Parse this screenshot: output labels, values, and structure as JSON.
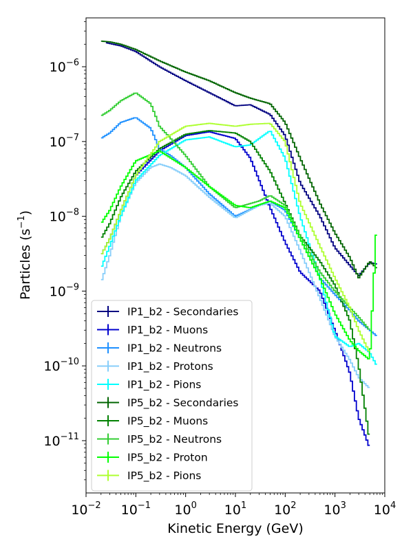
{
  "chart_data": {
    "type": "line",
    "style": "step-histogram",
    "xlabel": "Kinetic Energy (GeV)",
    "ylabel": "Particles (s",
    "ylabel_exp": "−1",
    "ylabel_close": ")",
    "xscale": "log",
    "yscale": "log",
    "xlim": [
      0.01,
      10000
    ],
    "ylim": [
      2e-12,
      4.5e-06
    ],
    "x_ticks": [
      {
        "value": 0.01,
        "mantissa": "10",
        "exp": "−2"
      },
      {
        "value": 0.1,
        "mantissa": "10",
        "exp": "−1"
      },
      {
        "value": 1,
        "mantissa": "10",
        "exp": "0"
      },
      {
        "value": 10,
        "mantissa": "10",
        "exp": "1"
      },
      {
        "value": 100,
        "mantissa": "10",
        "exp": "2"
      },
      {
        "value": 1000,
        "mantissa": "10",
        "exp": "3"
      },
      {
        "value": 10000,
        "mantissa": "10",
        "exp": "4"
      }
    ],
    "y_ticks": [
      {
        "value": 1e-11,
        "mantissa": "10",
        "exp": "−11"
      },
      {
        "value": 1e-10,
        "mantissa": "10",
        "exp": "−10"
      },
      {
        "value": 1e-09,
        "mantissa": "10",
        "exp": "−9"
      },
      {
        "value": 1e-08,
        "mantissa": "10",
        "exp": "−8"
      },
      {
        "value": 1e-07,
        "mantissa": "10",
        "exp": "−7"
      },
      {
        "value": 1e-06,
        "mantissa": "10",
        "exp": "−6"
      }
    ],
    "legend_position": "lower-left",
    "series": [
      {
        "name": "IP1_b2 - Secondaries",
        "color": "#000080",
        "x": [
          0.025,
          0.05,
          0.1,
          0.3,
          1,
          3,
          10,
          20,
          50,
          100,
          200,
          500,
          1000,
          2000,
          3000,
          5000,
          7000
        ],
        "y": [
          2.1e-06,
          1.9e-06,
          1.6e-06,
          1e-06,
          6.5e-07,
          4.5e-07,
          3e-07,
          3.1e-07,
          2.3e-07,
          1.2e-07,
          2.8e-08,
          1e-08,
          3.8e-09,
          2.2e-09,
          1.6e-09,
          2.4e-09,
          2.3e-09
        ]
      },
      {
        "name": "IP1_b2 - Muons",
        "color": "#0000cd",
        "x": [
          0.02,
          0.03,
          0.05,
          0.1,
          0.3,
          1,
          3,
          10,
          20,
          50,
          100,
          200,
          500,
          1000,
          2000,
          3000,
          5000
        ],
        "y": [
          3e-09,
          5e-09,
          1.2e-08,
          3.5e-08,
          7.5e-08,
          1.2e-07,
          1.35e-07,
          1.1e-07,
          6e-08,
          1.3e-08,
          4.5e-09,
          1.8e-09,
          1e-09,
          3e-10,
          8e-11,
          2e-11,
          8e-12
        ]
      },
      {
        "name": "IP1_b2 - Neutrons",
        "color": "#1e90ff",
        "x": [
          0.02,
          0.03,
          0.05,
          0.1,
          0.2,
          0.3,
          0.5,
          1,
          3,
          10,
          30,
          50,
          100,
          200,
          500,
          1000,
          2000,
          3000,
          5000,
          7000
        ],
        "y": [
          1.1e-07,
          1.3e-07,
          1.8e-07,
          2.1e-07,
          1.5e-07,
          8e-08,
          6.5e-08,
          4.5e-08,
          2e-08,
          1e-08,
          1.4e-08,
          1.6e-08,
          1.2e-08,
          5e-09,
          1.5e-09,
          9e-10,
          5.5e-10,
          4e-10,
          3e-10,
          2.5e-10
        ]
      },
      {
        "name": "IP1_b2 - Protons",
        "color": "#87cefa",
        "x": [
          0.02,
          0.03,
          0.05,
          0.1,
          0.2,
          0.3,
          0.5,
          1,
          3,
          10,
          30,
          50,
          100,
          200,
          500,
          1000,
          2000,
          3000,
          5000
        ],
        "y": [
          1.3e-09,
          3e-09,
          1e-08,
          2.8e-08,
          4.5e-08,
          5e-08,
          4.5e-08,
          3.5e-08,
          1.8e-08,
          9.5e-09,
          1.4e-08,
          1.5e-08,
          1e-08,
          3.5e-09,
          8e-10,
          2.5e-10,
          1.2e-10,
          7e-11,
          5e-11
        ]
      },
      {
        "name": "IP1_b2 - Pions",
        "color": "#00ffff",
        "x": [
          0.02,
          0.03,
          0.05,
          0.1,
          0.3,
          1,
          3,
          10,
          20,
          50,
          100,
          200,
          500,
          1000,
          2000,
          3000,
          5000,
          7000
        ],
        "y": [
          2e-09,
          4e-09,
          1e-08,
          3e-08,
          6.5e-08,
          1.05e-07,
          1.15e-07,
          8.5e-08,
          9e-08,
          1.4e-07,
          6e-08,
          1e-08,
          1.5e-09,
          2.5e-10,
          1.8e-10,
          2e-10,
          1.5e-10,
          1e-10
        ]
      },
      {
        "name": "IP5_b2 - Secondaries",
        "color": "#006400",
        "x": [
          0.02,
          0.03,
          0.05,
          0.1,
          0.3,
          1,
          3,
          10,
          20,
          50,
          100,
          200,
          500,
          1000,
          2000,
          3000,
          5000,
          7000
        ],
        "y": [
          2.2e-06,
          2.15e-06,
          2e-06,
          1.7e-06,
          1.2e-06,
          8.5e-07,
          6.5e-07,
          4.5e-07,
          3.8e-07,
          3.2e-07,
          1.8e-07,
          6e-08,
          1.5e-08,
          6e-09,
          2.8e-09,
          1.5e-09,
          2.5e-09,
          2e-09
        ]
      },
      {
        "name": "IP5_b2 - Muons",
        "color": "#008000",
        "x": [
          0.02,
          0.03,
          0.05,
          0.1,
          0.3,
          1,
          3,
          10,
          20,
          50,
          100,
          200,
          500,
          1000,
          2000,
          3000,
          5000
        ],
        "y": [
          5e-09,
          8e-09,
          1.8e-08,
          4e-08,
          8e-08,
          1.25e-07,
          1.4e-07,
          1.3e-07,
          1e-07,
          4e-08,
          1.5e-08,
          5.5e-09,
          2.5e-09,
          1.2e-09,
          4e-10,
          1e-10,
          1e-11
        ]
      },
      {
        "name": "IP5_b2 - Neutrons",
        "color": "#32cd32",
        "x": [
          0.02,
          0.03,
          0.05,
          0.1,
          0.2,
          0.3,
          0.5,
          1,
          3,
          10,
          30,
          50,
          100,
          200,
          500,
          1000,
          2000,
          3000,
          5000
        ],
        "y": [
          2.2e-07,
          2.6e-07,
          3.5e-07,
          4.5e-07,
          3.2e-07,
          1.6e-07,
          1.1e-07,
          6.5e-08,
          2.5e-08,
          1.3e-08,
          1.6e-08,
          1.9e-08,
          1.4e-08,
          5.5e-09,
          1.8e-09,
          1e-09,
          6e-10,
          4.5e-10,
          3e-10
        ]
      },
      {
        "name": "IP5_b2 - Proton",
        "color": "#00ff00",
        "x": [
          0.02,
          0.03,
          0.05,
          0.1,
          0.3,
          1,
          3,
          10,
          20,
          50,
          100,
          200,
          500,
          1000,
          2000,
          3000,
          5000,
          7000
        ],
        "y": [
          8e-09,
          1.2e-08,
          2.5e-08,
          5.5e-08,
          7.5e-08,
          4.5e-08,
          2.5e-08,
          1.4e-08,
          1.3e-08,
          1.6e-08,
          1.3e-08,
          5e-09,
          1.5e-09,
          5e-10,
          2.2e-10,
          1.6e-10,
          1.2e-10,
          1e-08
        ]
      },
      {
        "name": "IP5_b2 - Pions",
        "color": "#adff2f",
        "x": [
          0.02,
          0.03,
          0.05,
          0.1,
          0.3,
          1,
          3,
          10,
          20,
          50,
          100,
          200,
          500,
          1000,
          2000,
          3000,
          5000
        ],
        "y": [
          3e-09,
          5e-09,
          1.2e-08,
          3.5e-08,
          1e-07,
          1.6e-07,
          1.75e-07,
          1.6e-07,
          1.7e-07,
          1.75e-07,
          1e-07,
          1.5e-08,
          4e-09,
          1.5e-09,
          6e-10,
          3e-10,
          1.5e-10
        ]
      }
    ]
  }
}
